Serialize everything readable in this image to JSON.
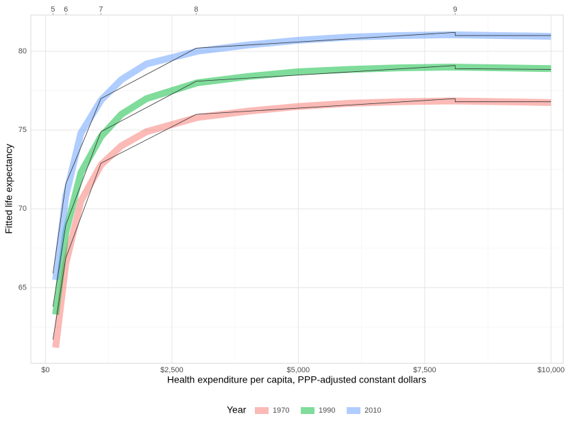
{
  "chart_data": {
    "type": "line",
    "xlabel": "Health expenditure per capita, PPP-adjusted constant dollars",
    "ylabel": "Fitted life expectancy",
    "legend_title": "Year",
    "legend_position": "bottom",
    "grid": true,
    "xlim": [
      -290,
      10240
    ],
    "ylim": [
      60.2,
      82.3
    ],
    "xticks": [
      {
        "value": 0,
        "label": "$0"
      },
      {
        "value": 2500,
        "label": "$2,500"
      },
      {
        "value": 5000,
        "label": "$5,000"
      },
      {
        "value": 7500,
        "label": "$7,500"
      },
      {
        "value": 10000,
        "label": "$10,000"
      }
    ],
    "x_minor_ticks": [
      1250,
      3750,
      6250,
      8750
    ],
    "yticks": [
      65,
      70,
      75,
      80
    ],
    "y_minor_ticks": [
      62.5,
      67.5,
      72.5,
      77.5
    ],
    "x2ticks": [
      5,
      6,
      7,
      8,
      9
    ],
    "x2scale": "log",
    "x": [
      200,
      400,
      700,
      1100,
      1500,
      2000,
      3000,
      4000,
      5000,
      6000,
      7000,
      8000,
      9000,
      10000
    ],
    "step_x": [
      148,
      403,
      1097,
      2981,
      8103,
      8103,
      10000
    ],
    "step_color": "#333333",
    "series": [
      {
        "name": "1970",
        "color": "#F8766D",
        "values": [
          61.2,
          66.5,
          70.5,
          72.8,
          74.0,
          74.9,
          75.8,
          76.2,
          76.5,
          76.7,
          76.8,
          76.85,
          76.8,
          76.75
        ],
        "step_values": [
          61.7,
          66.9,
          72.9,
          76.0,
          77.0,
          76.8,
          76.8
        ]
      },
      {
        "name": "1990",
        "color": "#00BA38",
        "values": [
          63.3,
          68.5,
          72.3,
          74.6,
          76.0,
          77.0,
          78.0,
          78.4,
          78.7,
          78.85,
          78.95,
          79.0,
          78.95,
          78.9
        ],
        "step_values": [
          63.8,
          69.0,
          74.9,
          78.1,
          79.1,
          78.9,
          78.85
        ]
      },
      {
        "name": "2010",
        "color": "#619CFF",
        "values": [
          65.5,
          70.8,
          74.8,
          76.9,
          78.2,
          79.2,
          80.0,
          80.4,
          80.7,
          80.9,
          81.0,
          81.05,
          81.0,
          80.95
        ],
        "step_values": [
          65.9,
          71.6,
          77.0,
          80.2,
          81.2,
          81.0,
          81.0
        ]
      }
    ]
  }
}
